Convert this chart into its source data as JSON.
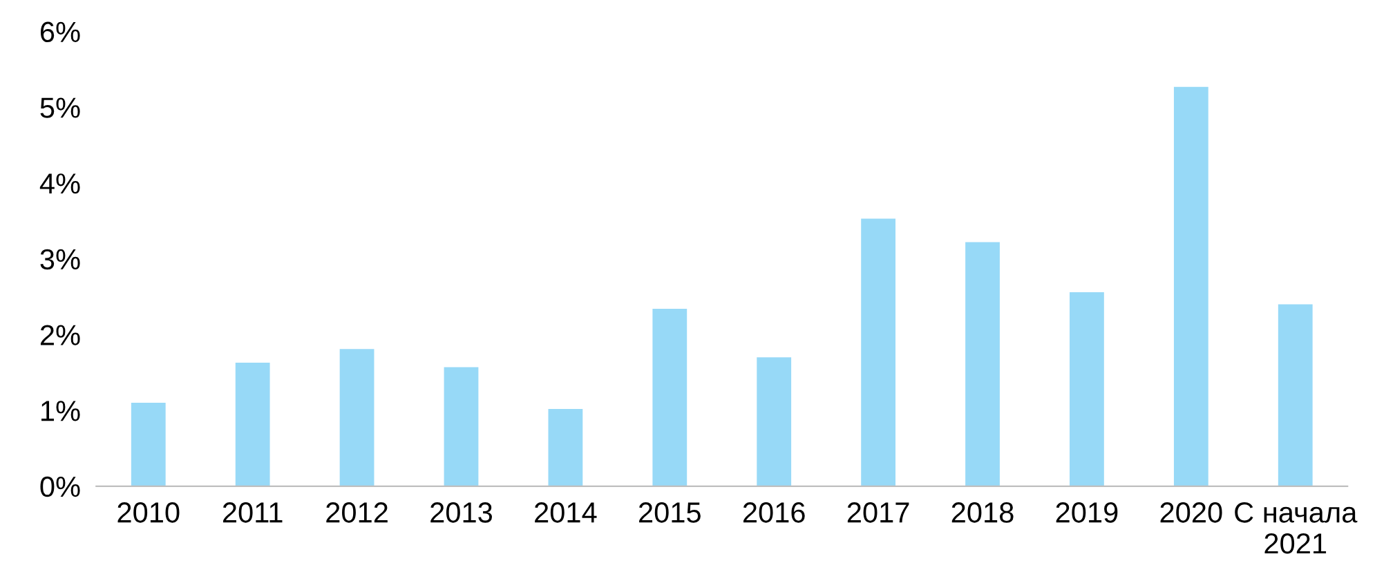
{
  "chart_data": {
    "type": "bar",
    "categories": [
      "2010",
      "2011",
      "2012",
      "2013",
      "2014",
      "2015",
      "2016",
      "2017",
      "2018",
      "2019",
      "2020",
      "С начала\n2021"
    ],
    "values": [
      1.1,
      1.63,
      1.81,
      1.57,
      1.02,
      2.34,
      1.7,
      3.53,
      3.22,
      2.56,
      5.27,
      2.4
    ],
    "color": "#97d9f7",
    "ylim": [
      0,
      6
    ],
    "yticks": [
      {
        "value": 0,
        "label": "0%"
      },
      {
        "value": 1,
        "label": "1%"
      },
      {
        "value": 2,
        "label": "2%"
      },
      {
        "value": 3,
        "label": "3%"
      },
      {
        "value": 4,
        "label": "4%"
      },
      {
        "value": 5,
        "label": "5%"
      },
      {
        "value": 6,
        "label": "6%"
      }
    ],
    "grid": false,
    "legend": false
  }
}
